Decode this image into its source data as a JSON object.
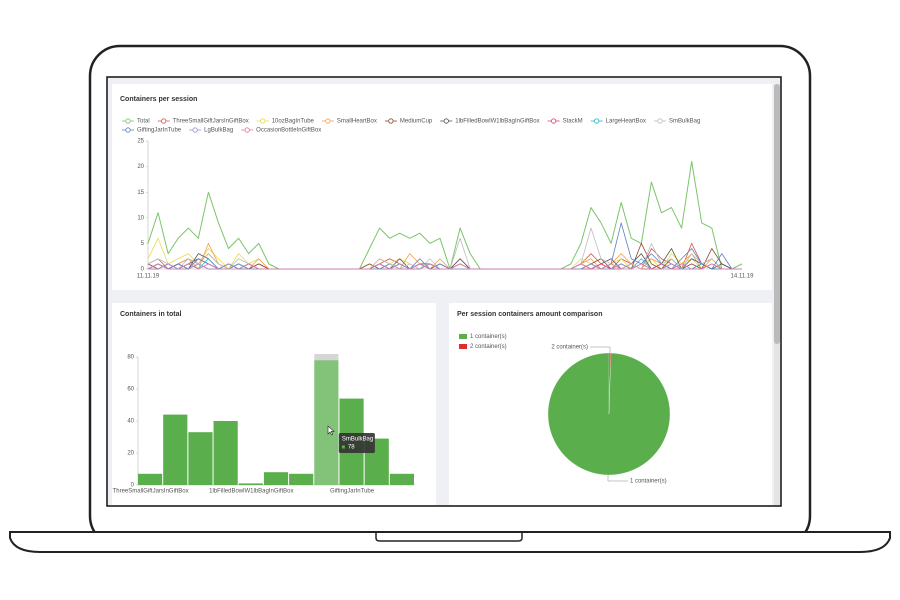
{
  "chart_data": [
    {
      "type": "line",
      "title": "Containers per session",
      "categories": [
        "11.11.19",
        null,
        null,
        null,
        null,
        null,
        null,
        null,
        null,
        null,
        null,
        null,
        null,
        null,
        null,
        null,
        null,
        null,
        null,
        null,
        null,
        null,
        null,
        null,
        null,
        null,
        null,
        null,
        null,
        null,
        null,
        null,
        null,
        null,
        null,
        null,
        null,
        null,
        null,
        null,
        null,
        null,
        null,
        null,
        null,
        null,
        null,
        null,
        null,
        null,
        null,
        null,
        null,
        null,
        null,
        null,
        null,
        null,
        null,
        "14.11.19"
      ],
      "ylim": [
        0,
        25
      ],
      "yticks": [
        0,
        5,
        10,
        15,
        20,
        25
      ],
      "series": [
        {
          "name": "Total",
          "color": "#7cc46a",
          "values": [
            5,
            11,
            3,
            6,
            8,
            6,
            15,
            9,
            4,
            6,
            3,
            5,
            1,
            0,
            0,
            0,
            0,
            0,
            0,
            0,
            0,
            0,
            4,
            8,
            6,
            7,
            6,
            7,
            5,
            6,
            0,
            8,
            3,
            0,
            0,
            0,
            0,
            0,
            0,
            0,
            0,
            0,
            1,
            5,
            12,
            9,
            5,
            13,
            6,
            5,
            17,
            11,
            12,
            8,
            21,
            9,
            8,
            0,
            0,
            1
          ]
        },
        {
          "name": "ThreeSmallGiftJarsInGiftBox",
          "color": "#d9534f",
          "values": [
            1,
            2,
            0,
            1,
            2,
            1,
            3,
            1,
            0,
            1,
            0,
            1,
            0,
            0,
            0,
            0,
            0,
            0,
            0,
            0,
            0,
            0,
            0,
            1,
            2,
            1,
            0,
            1,
            0,
            1,
            0,
            2,
            0,
            0,
            0,
            0,
            0,
            0,
            0,
            0,
            0,
            0,
            0,
            1,
            3,
            1,
            0,
            2,
            1,
            0,
            4,
            2,
            1,
            0,
            5,
            1,
            2,
            0,
            0,
            0
          ]
        },
        {
          "name": "10ozBagInTube",
          "color": "#e8dc4a",
          "values": [
            2,
            6,
            1,
            2,
            3,
            1,
            4,
            2,
            0,
            3,
            1,
            2,
            0,
            0,
            0,
            0,
            0,
            0,
            0,
            0,
            0,
            0,
            1,
            0,
            1,
            2,
            1,
            0,
            1,
            0,
            0,
            1,
            0,
            0,
            0,
            0,
            0,
            0,
            0,
            0,
            0,
            0,
            0,
            2,
            1,
            0,
            1,
            2,
            0,
            1,
            2,
            0,
            3,
            1,
            2,
            0,
            1,
            0,
            0,
            0
          ]
        },
        {
          "name": "SmallHeartBox",
          "color": "#f0a04b",
          "values": [
            0,
            1,
            0,
            1,
            2,
            0,
            5,
            1,
            0,
            1,
            0,
            2,
            0,
            0,
            0,
            0,
            0,
            0,
            0,
            0,
            0,
            0,
            0,
            2,
            1,
            0,
            3,
            1,
            0,
            2,
            0,
            1,
            0,
            0,
            0,
            0,
            0,
            0,
            0,
            0,
            0,
            0,
            0,
            1,
            2,
            0,
            1,
            3,
            1,
            0,
            2,
            1,
            0,
            1,
            3,
            0,
            2,
            0,
            0,
            0
          ]
        },
        {
          "name": "MediumCup",
          "color": "#8b4a2b",
          "values": [
            1,
            0,
            1,
            0,
            1,
            2,
            1,
            0,
            1,
            0,
            0,
            1,
            0,
            0,
            0,
            0,
            0,
            0,
            0,
            0,
            0,
            0,
            1,
            0,
            0,
            1,
            0,
            1,
            0,
            0,
            0,
            0,
            0,
            0,
            0,
            0,
            0,
            0,
            0,
            0,
            0,
            0,
            0,
            0,
            1,
            2,
            0,
            1,
            0,
            5,
            1,
            0,
            2,
            0,
            1,
            0,
            4,
            1,
            0,
            0
          ]
        },
        {
          "name": "1lbFilledBowlW1lbBagInGiftBox",
          "color": "#555555",
          "values": [
            0,
            1,
            0,
            1,
            0,
            3,
            2,
            0,
            1,
            0,
            1,
            0,
            0,
            0,
            0,
            0,
            0,
            0,
            0,
            0,
            0,
            0,
            0,
            1,
            0,
            2,
            0,
            1,
            1,
            0,
            0,
            2,
            0,
            0,
            0,
            0,
            0,
            0,
            0,
            0,
            0,
            0,
            0,
            1,
            0,
            1,
            2,
            0,
            1,
            3,
            0,
            1,
            4,
            0,
            2,
            1,
            0,
            1,
            0,
            0
          ]
        },
        {
          "name": "StackM",
          "color": "#e0436b",
          "values": [
            0,
            0,
            1,
            0,
            0,
            1,
            0,
            0,
            0,
            1,
            0,
            0,
            0,
            0,
            0,
            0,
            0,
            0,
            0,
            0,
            0,
            0,
            0,
            0,
            1,
            0,
            0,
            0,
            1,
            0,
            0,
            0,
            0,
            0,
            0,
            0,
            0,
            0,
            0,
            0,
            0,
            0,
            0,
            0,
            0,
            1,
            0,
            0,
            1,
            0,
            0,
            1,
            0,
            0,
            0,
            1,
            0,
            0,
            0,
            0
          ]
        },
        {
          "name": "LargeHeartBox",
          "color": "#2bb3c9",
          "values": [
            0,
            1,
            0,
            0,
            1,
            0,
            2,
            0,
            0,
            1,
            0,
            0,
            0,
            0,
            0,
            0,
            0,
            0,
            0,
            0,
            0,
            0,
            0,
            0,
            1,
            0,
            0,
            1,
            0,
            0,
            0,
            0,
            0,
            0,
            0,
            0,
            0,
            0,
            0,
            0,
            0,
            0,
            0,
            0,
            1,
            0,
            0,
            1,
            0,
            2,
            0,
            0,
            1,
            0,
            0,
            1,
            0,
            0,
            0,
            0
          ]
        },
        {
          "name": "SmBulkBag",
          "color": "#bdbdbd",
          "values": [
            1,
            2,
            1,
            0,
            2,
            1,
            3,
            1,
            0,
            2,
            1,
            0,
            0,
            0,
            0,
            0,
            0,
            0,
            0,
            0,
            0,
            0,
            0,
            2,
            1,
            0,
            1,
            0,
            2,
            0,
            0,
            6,
            0,
            0,
            0,
            0,
            0,
            0,
            0,
            0,
            0,
            0,
            0,
            1,
            8,
            2,
            1,
            0,
            1,
            0,
            5,
            1,
            2,
            0,
            3,
            1,
            2,
            0,
            0,
            0
          ]
        },
        {
          "name": "GiftingJarInTube",
          "color": "#5b7fc2",
          "values": [
            0,
            1,
            0,
            1,
            0,
            2,
            1,
            0,
            1,
            0,
            1,
            0,
            0,
            0,
            0,
            0,
            0,
            0,
            0,
            0,
            0,
            0,
            0,
            1,
            0,
            1,
            0,
            2,
            0,
            1,
            0,
            1,
            0,
            0,
            0,
            0,
            0,
            0,
            0,
            0,
            0,
            0,
            0,
            0,
            1,
            0,
            1,
            9,
            2,
            1,
            3,
            1,
            0,
            2,
            4,
            1,
            0,
            3,
            0,
            0
          ]
        },
        {
          "name": "LgBulkBag",
          "color": "#a08fd0",
          "values": [
            0,
            0,
            1,
            0,
            0,
            1,
            0,
            0,
            1,
            0,
            0,
            0,
            0,
            0,
            0,
            0,
            0,
            0,
            0,
            0,
            0,
            0,
            0,
            0,
            0,
            1,
            0,
            0,
            1,
            0,
            0,
            0,
            0,
            0,
            0,
            0,
            0,
            0,
            0,
            0,
            0,
            0,
            0,
            0,
            1,
            0,
            0,
            1,
            0,
            1,
            0,
            0,
            1,
            0,
            0,
            0,
            1,
            0,
            0,
            0
          ]
        },
        {
          "name": "OccasionBottleInGiftBox",
          "color": "#e377a8",
          "values": [
            0,
            1,
            0,
            0,
            1,
            0,
            1,
            0,
            0,
            0,
            1,
            0,
            0,
            0,
            0,
            0,
            0,
            0,
            0,
            0,
            0,
            0,
            0,
            1,
            0,
            0,
            0,
            1,
            0,
            0,
            0,
            1,
            0,
            0,
            0,
            0,
            0,
            0,
            0,
            0,
            0,
            0,
            0,
            1,
            0,
            0,
            1,
            0,
            0,
            1,
            0,
            0,
            0,
            1,
            0,
            0,
            1,
            0,
            0,
            0
          ]
        }
      ]
    },
    {
      "type": "bar",
      "title": "Containers in total",
      "categories": [
        "ThreeSmallGiftJarsInGiftBox",
        null,
        null,
        null,
        "1lbFilledBowlW1lbBagInGiftBox",
        null,
        null,
        null,
        "GiftingJarInTube",
        null,
        null
      ],
      "values": [
        7,
        44,
        33,
        40,
        1,
        8,
        7,
        78,
        54,
        29,
        7
      ],
      "color": "#5aaf4c",
      "ylim": [
        0,
        80
      ],
      "yticks": [
        0,
        20,
        40,
        60,
        80
      ],
      "tooltip": {
        "name": "SmBulkBag"
      }
    },
    {
      "type": "pie",
      "title": "Per session containers amount comparison",
      "categories": [
        "1 container(s)",
        "2 container(s)"
      ],
      "values": [
        99.5,
        0.5
      ],
      "colors": [
        "#5aaf4c",
        "#d9302c"
      ]
    }
  ]
}
